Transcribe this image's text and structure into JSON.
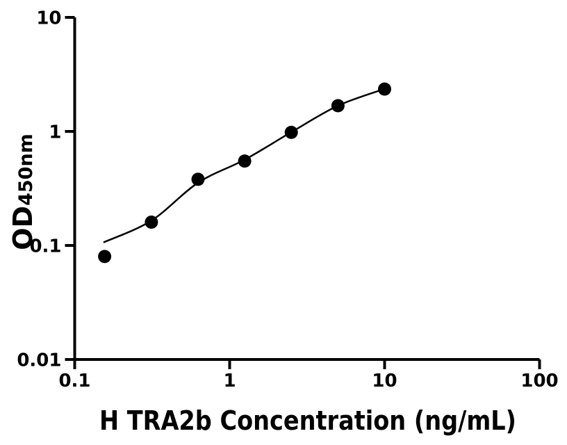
{
  "figure": {
    "background_color": "#ffffff",
    "foreground_color": "#000000"
  },
  "chart_data": {
    "type": "scatter",
    "title": "",
    "xlabel": "H TRA2b Concentration (ng/mL)",
    "ylabel": "OD",
    "ylabel_subscript": "450nm",
    "x_scale": "log",
    "y_scale": "log",
    "xlim": [
      0.1,
      100
    ],
    "ylim": [
      0.01,
      10
    ],
    "x_ticks": [
      0.1,
      1,
      10,
      100
    ],
    "x_tick_labels": [
      "0.1",
      "1",
      "10",
      "100"
    ],
    "y_ticks": [
      0.01,
      0.1,
      1,
      10
    ],
    "y_tick_labels": [
      "0.01",
      "0.1",
      "1",
      "10"
    ],
    "grid": "off",
    "legend": "none",
    "points": [
      {
        "x": 0.156,
        "y": 0.08
      },
      {
        "x": 0.3125,
        "y": 0.16
      },
      {
        "x": 0.625,
        "y": 0.38
      },
      {
        "x": 1.25,
        "y": 0.55
      },
      {
        "x": 2.5,
        "y": 0.98
      },
      {
        "x": 5,
        "y": 1.68
      },
      {
        "x": 10,
        "y": 2.35
      }
    ],
    "fit_curve": [
      {
        "x": 0.155,
        "y": 0.107
      },
      {
        "x": 0.3125,
        "y": 0.165
      },
      {
        "x": 0.625,
        "y": 0.355
      },
      {
        "x": 1.25,
        "y": 0.565
      },
      {
        "x": 2.5,
        "y": 0.985
      },
      {
        "x": 5,
        "y": 1.68
      },
      {
        "x": 10,
        "y": 2.36
      }
    ],
    "marker": {
      "shape": "circle",
      "color": "#000000",
      "radius": 9.5
    },
    "line_color": "#000000",
    "axis_color": "#000000"
  }
}
